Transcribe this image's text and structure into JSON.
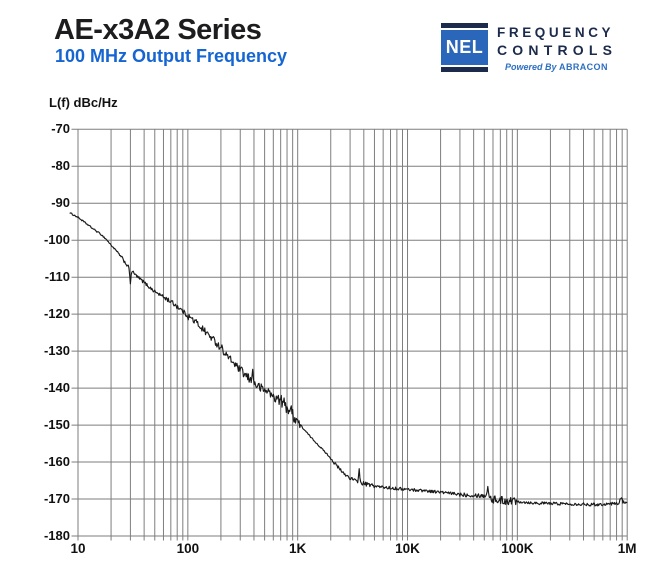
{
  "header": {
    "title": "AE-x3A2 Series",
    "subtitle": "100 MHz Output Frequency"
  },
  "logo": {
    "nel": "NEL",
    "line1": "FREQUENCY",
    "line2": "CONTROLS",
    "powered_by": "Powered By",
    "abracon": "ABRACON"
  },
  "colors": {
    "title_text": "#1d1d1f",
    "subtitle_blue": "#1565d2",
    "logo_navy": "#1c2b4c",
    "logo_blue": "#2a67ba",
    "abracon_blue": "#2d6fc1",
    "grid_gray": "#7e7e7e",
    "curve_black": "#1a1a1a",
    "axis_text": "#111111"
  },
  "chart_data": {
    "type": "line",
    "title": "L(f) dBc/Hz",
    "x_axis": {
      "scale": "log",
      "min": 10,
      "max": 1000000,
      "unit": "Hz",
      "tick_labels": [
        "10",
        "100",
        "1K",
        "10K",
        "100K",
        "1M"
      ]
    },
    "y_axis": {
      "min": -180,
      "max": -70,
      "step": 10,
      "unit": "dBc/Hz",
      "tick_labels": [
        "-70",
        "-80",
        "-90",
        "-100",
        "-110",
        "-120",
        "-130",
        "-140",
        "-150",
        "-160",
        "-170",
        "-180"
      ]
    },
    "grid": "log-minor-vertical, major-horizontal",
    "legend": "none",
    "series": [
      {
        "name": "phase-noise-100MHz",
        "points": [
          [
            8.4,
            -92.6
          ],
          [
            10,
            -93.8
          ],
          [
            12,
            -95.6
          ],
          [
            14,
            -97.1
          ],
          [
            16,
            -98.3
          ],
          [
            18,
            -99.7
          ],
          [
            20,
            -101.3
          ],
          [
            23,
            -103.3
          ],
          [
            26,
            -105.4
          ],
          [
            30,
            -108
          ],
          [
            35,
            -110
          ],
          [
            40,
            -111.4
          ],
          [
            45,
            -112.8
          ],
          [
            50,
            -113.9
          ],
          [
            60,
            -115.3
          ],
          [
            70,
            -116.6
          ],
          [
            80,
            -117.9
          ],
          [
            90,
            -119.2
          ],
          [
            100,
            -120.5
          ],
          [
            120,
            -122.3
          ],
          [
            150,
            -125.2
          ],
          [
            180,
            -127.6
          ],
          [
            210,
            -130
          ],
          [
            250,
            -132.6
          ],
          [
            300,
            -135.2
          ],
          [
            350,
            -137.2
          ],
          [
            400,
            -138.7
          ],
          [
            450,
            -139.8
          ],
          [
            500,
            -140.6
          ],
          [
            600,
            -142.3
          ],
          [
            700,
            -143.4
          ],
          [
            800,
            -145.1
          ],
          [
            900,
            -146.9
          ],
          [
            1000,
            -148.9
          ],
          [
            1100,
            -150.6
          ],
          [
            1300,
            -153.1
          ],
          [
            1600,
            -155.9
          ],
          [
            1900,
            -158.2
          ],
          [
            2200,
            -160.6
          ],
          [
            2600,
            -163
          ],
          [
            3000,
            -164.3
          ],
          [
            3400,
            -165.2
          ],
          [
            3800,
            -165.7
          ],
          [
            4500,
            -166.2
          ],
          [
            5500,
            -166.7
          ],
          [
            7000,
            -167
          ],
          [
            9000,
            -167.3
          ],
          [
            11000,
            -167.5
          ],
          [
            14000,
            -167.7
          ],
          [
            18000,
            -168
          ],
          [
            22000,
            -168.3
          ],
          [
            27000,
            -168.6
          ],
          [
            33000,
            -168.8
          ],
          [
            40000,
            -168.9
          ],
          [
            48000,
            -169.1
          ],
          [
            54000,
            -169
          ],
          [
            58000,
            -169.9
          ],
          [
            65000,
            -170.3
          ],
          [
            75000,
            -170.4
          ],
          [
            85000,
            -170.4
          ],
          [
            100000,
            -170.6
          ],
          [
            120000,
            -170.9
          ],
          [
            150000,
            -171.1
          ],
          [
            200000,
            -171.2
          ],
          [
            300000,
            -171.3
          ],
          [
            400000,
            -171.4
          ],
          [
            500000,
            -171.5
          ],
          [
            600000,
            -171.4
          ],
          [
            700000,
            -171.3
          ],
          [
            800000,
            -171.2
          ],
          [
            840000,
            -171
          ],
          [
            880000,
            -169.6
          ],
          [
            920000,
            -170.9
          ],
          [
            1000000,
            -170.8
          ]
        ]
      }
    ],
    "spurs": [
      {
        "freq": 30,
        "tip": -111.8
      },
      {
        "freq": 204,
        "tip": -128.3
      },
      {
        "freq": 390,
        "tip": -134.9
      },
      {
        "freq": 540,
        "tip": -140.2
      },
      {
        "freq": 3620,
        "tip": -161.8
      },
      {
        "freq": 54000,
        "tip": -166.6
      }
    ],
    "noise_segments": [
      [
        8.4,
        25,
        0.2
      ],
      [
        25,
        60,
        0.45
      ],
      [
        60,
        100,
        0.65
      ],
      [
        100,
        300,
        0.95
      ],
      [
        300,
        700,
        1.25
      ],
      [
        700,
        1060,
        1.8
      ],
      [
        1060,
        2100,
        0.2
      ],
      [
        2100,
        3600,
        0.5
      ],
      [
        3600,
        5200,
        0.55
      ],
      [
        5200,
        30000,
        0.4
      ],
      [
        30000,
        56000,
        0.6
      ],
      [
        56000,
        100000,
        1.15
      ],
      [
        100000,
        820000,
        0.4
      ],
      [
        820000,
        1000000,
        0.45
      ]
    ]
  }
}
